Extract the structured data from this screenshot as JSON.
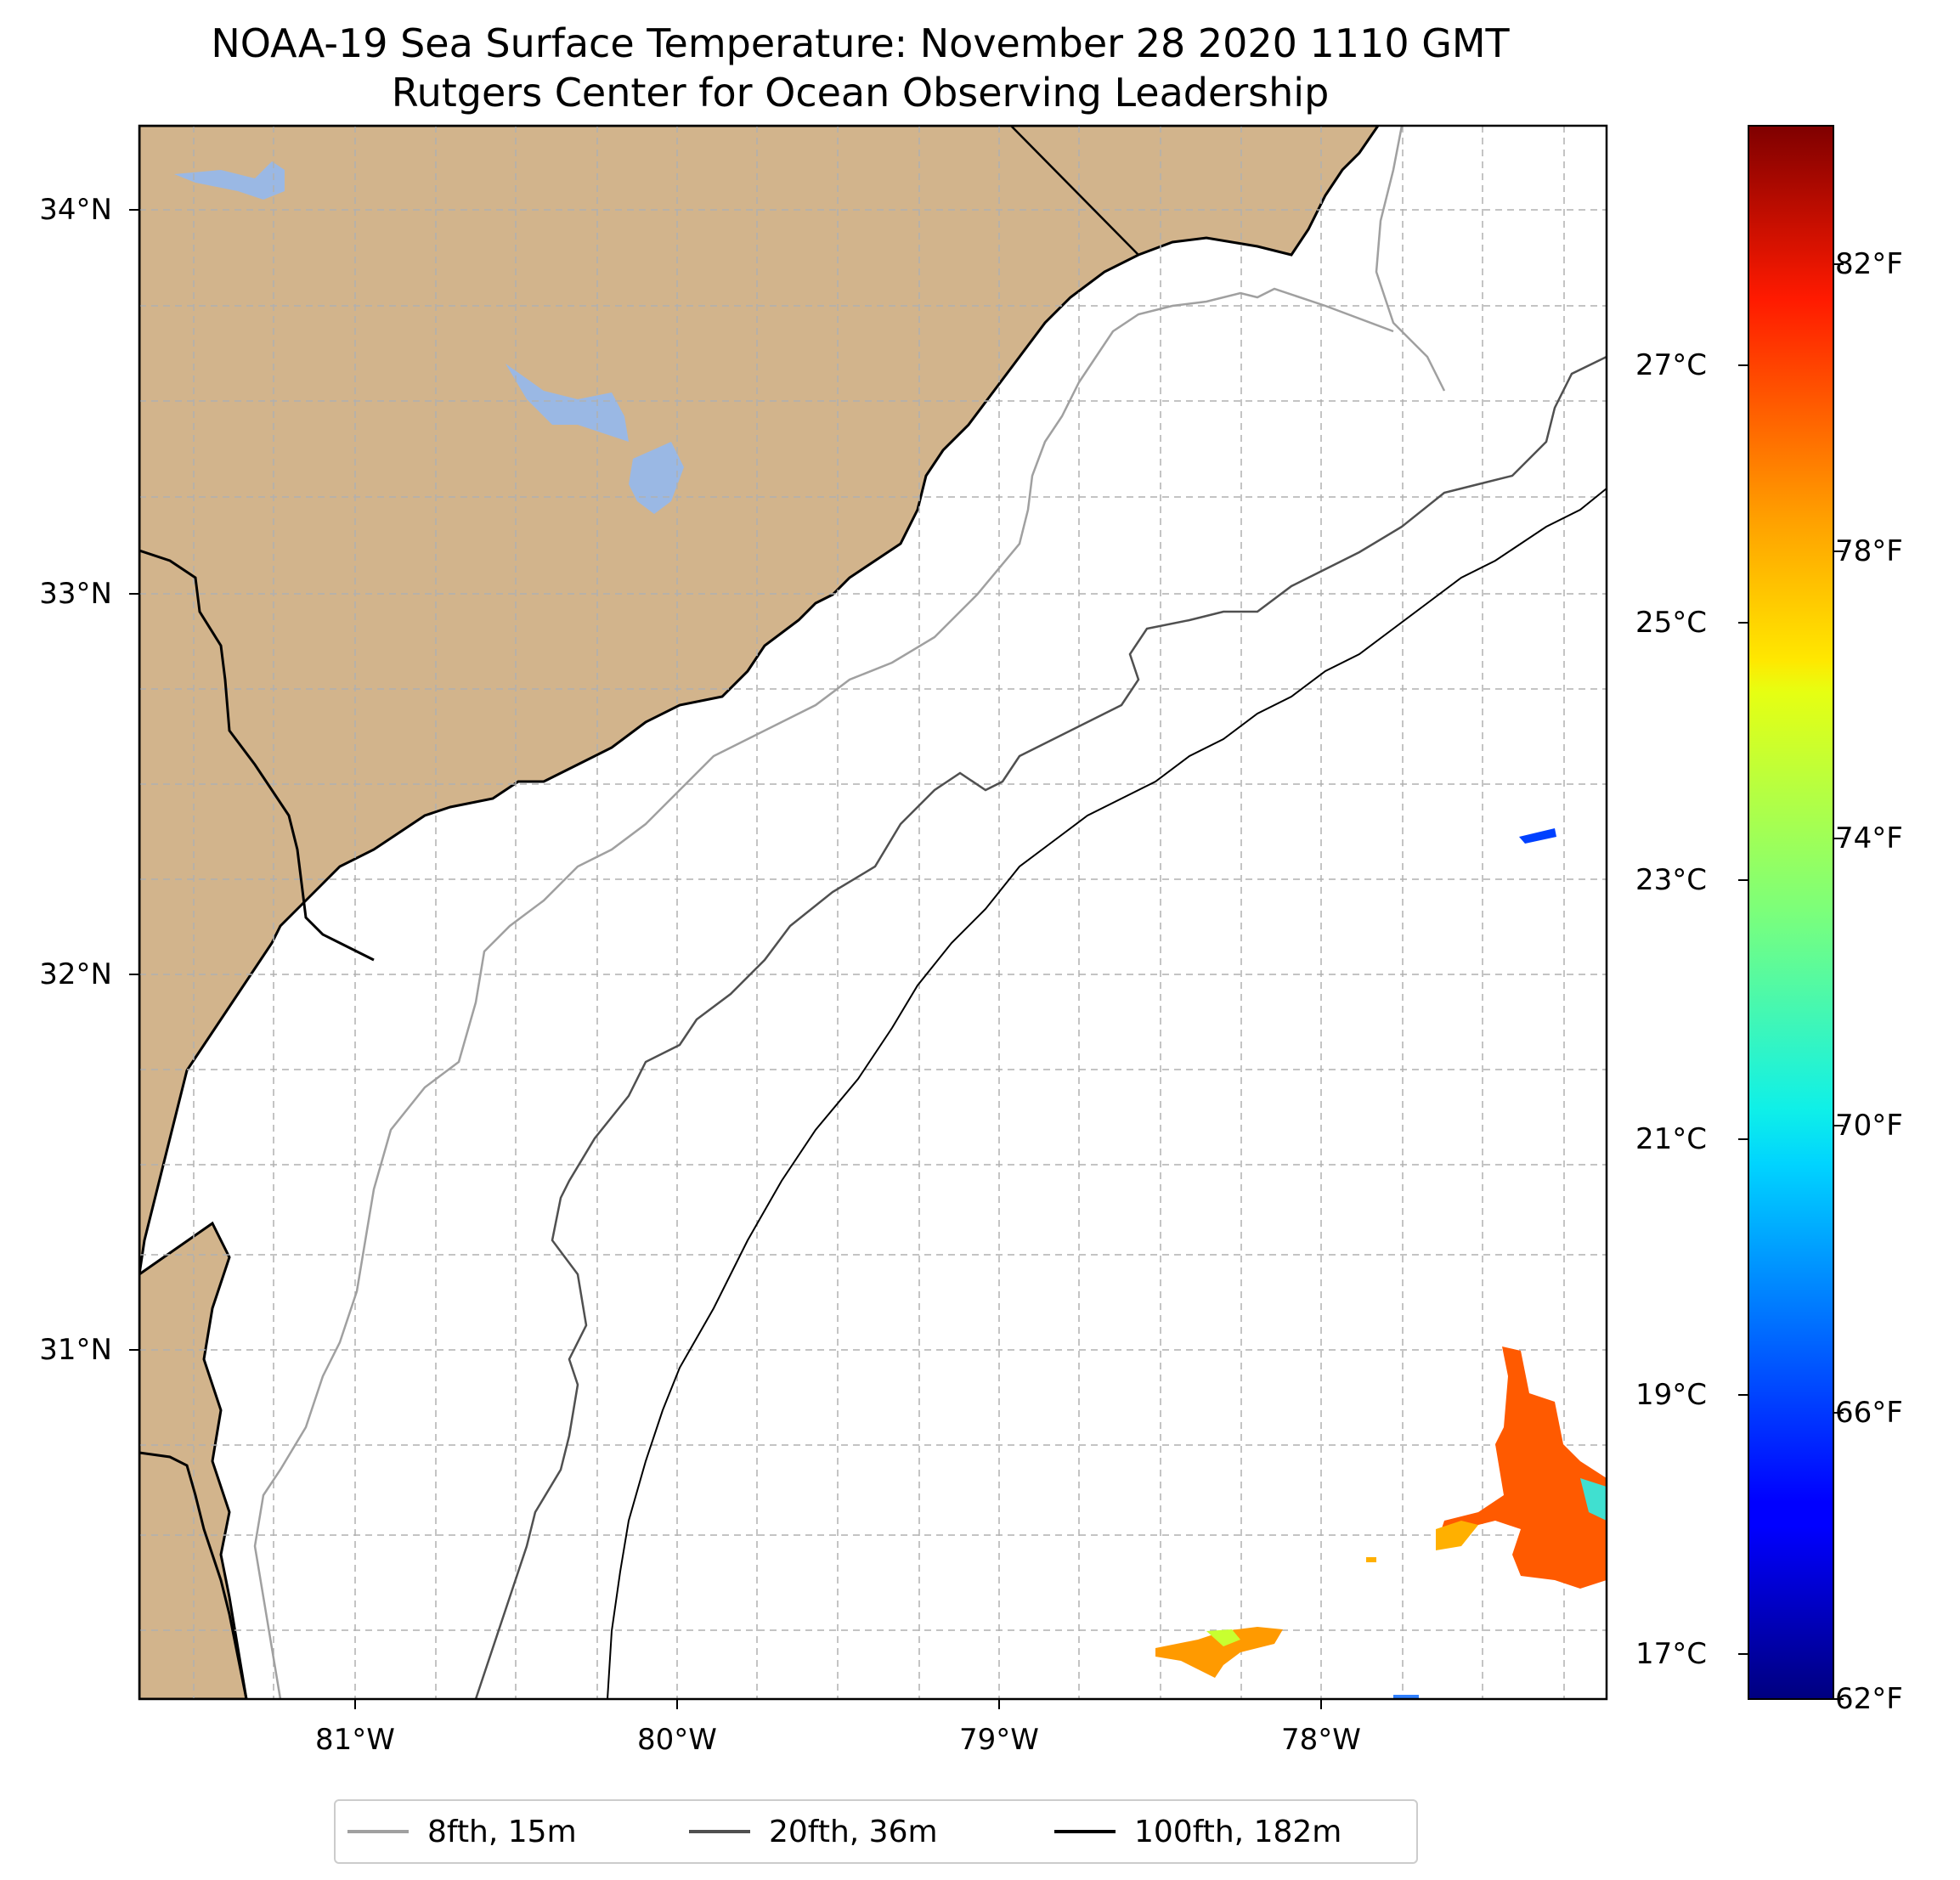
{
  "title": "NOAA-19 Sea Surface Temperature: November 28 2020 1110 GMT",
  "subtitle": "Rutgers Center for Ocean Observing Leadership",
  "chart_data": {
    "type": "heatmap",
    "title": "NOAA-19 Sea Surface Temperature: November 28 2020 1110 GMT",
    "subtitle": "Rutgers Center for Ocean Observing Leadership",
    "x_tick_labels": [
      "81°W",
      "80°W",
      "79°W",
      "78°W"
    ],
    "x_ticks": [
      -81,
      -80,
      -79,
      -78
    ],
    "y_tick_labels": [
      "31°N",
      "32°N",
      "33°N",
      "34°N"
    ],
    "y_ticks": [
      31,
      32,
      33,
      34
    ],
    "xlim": [
      -81.67,
      -77.12
    ],
    "ylim": [
      30.18,
      34.22
    ],
    "grid": true,
    "colorbar": {
      "colormap": "jet",
      "range_f": [
        62,
        84
      ],
      "fahrenheit_ticks": [
        62,
        66,
        70,
        74,
        78,
        82
      ],
      "fahrenheit_labels": [
        "62°F",
        "66°F",
        "70°F",
        "74°F",
        "78°F",
        "82°F"
      ],
      "celsius_labels": [
        "17°C",
        "19°C",
        "21°C",
        "23°C",
        "25°C",
        "27°C"
      ],
      "celsius_ticks": [
        17,
        19,
        21,
        23,
        25,
        27
      ]
    },
    "legend": {
      "placement": "bottom-center",
      "entries": [
        {
          "label": "8fth, 15m",
          "color": "#a0a0a0"
        },
        {
          "label": "20fth, 36m",
          "color": "#505050"
        },
        {
          "label": "100fth, 182m",
          "color": "#000000"
        }
      ]
    },
    "land_color": "#d2b48c",
    "water_body_color": "#9ab8e4",
    "sst_patches": [
      {
        "region": "south-east",
        "approx_temp_f": 80
      },
      {
        "region": "south-central",
        "approx_temp_f": 77
      },
      {
        "region": "east",
        "approx_temp_f": 65
      }
    ]
  }
}
